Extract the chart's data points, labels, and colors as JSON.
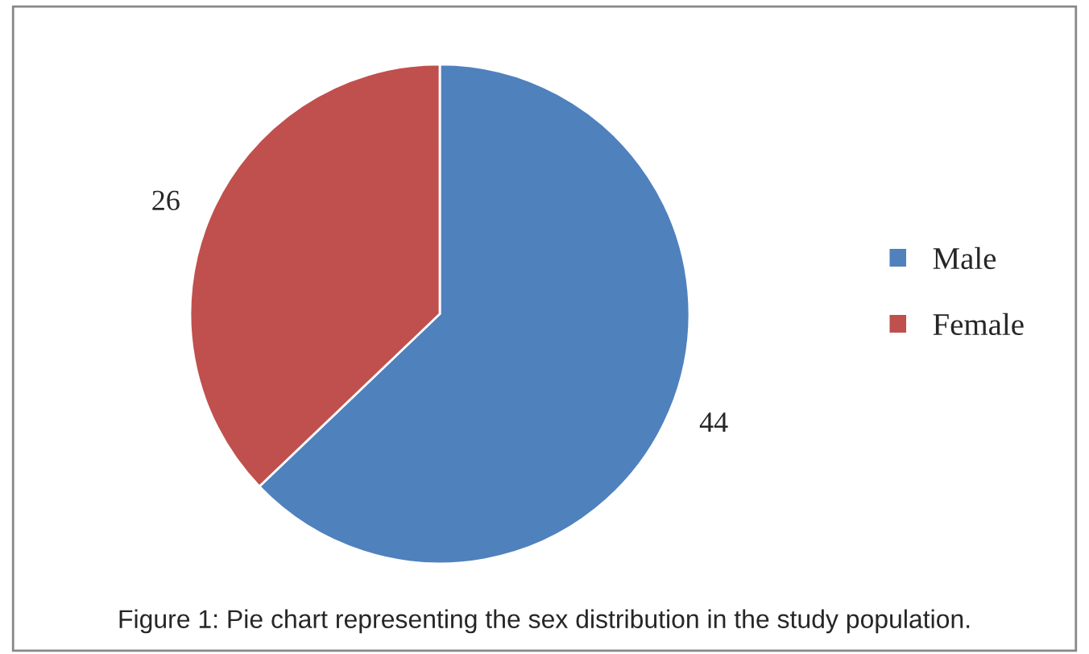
{
  "chart_data": {
    "type": "pie",
    "categories": [
      "Male",
      "Female"
    ],
    "values": [
      44,
      26
    ],
    "colors": [
      "#4f81bd",
      "#c0504d"
    ],
    "data_labels": true,
    "legend": "right",
    "annotations": [
      "Figure 1: Pie chart representing the sex distribution in the study population."
    ]
  }
}
